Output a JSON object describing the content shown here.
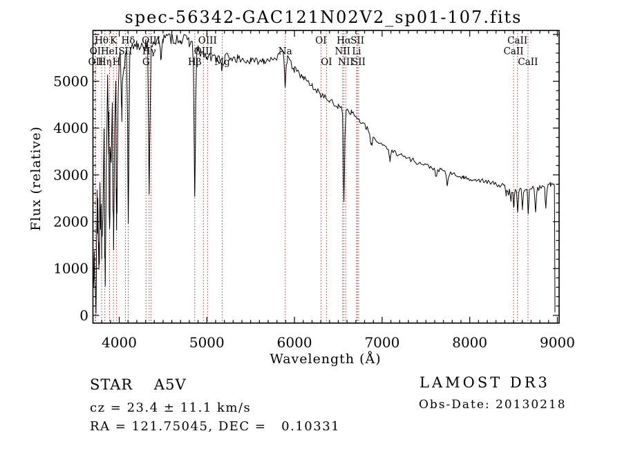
{
  "chart_data": {
    "type": "line",
    "title": "spec-56342-GAC121N02V2_sp01-107.fits",
    "xlabel": "Wavelength (Å)",
    "ylabel": "Flux (relative)",
    "xlim": [
      3700,
      9020
    ],
    "ylim": [
      -165,
      6085
    ],
    "x_major_ticks": [
      4000,
      5000,
      6000,
      7000,
      8000,
      9000
    ],
    "x_minor_step": 100,
    "y_major_ticks": [
      0,
      1000,
      2000,
      3000,
      4000,
      5000,
      6000
    ],
    "y_labeled_ticks": [
      0,
      1000,
      2000,
      3000,
      4000,
      5000
    ],
    "y_minor_step": 200,
    "grid": false,
    "line_color": "#000000",
    "marker_color": "#993333",
    "spectral_lines": [
      {
        "label": "Hθ",
        "wavelength": 3799,
        "row": 1
      },
      {
        "label": "K",
        "wavelength": 3934,
        "row": 1
      },
      {
        "label": "Hδ",
        "wavelength": 4102,
        "row": 1
      },
      {
        "label": "OIII",
        "wavelength": 4364,
        "row": 1
      },
      {
        "label": "OIII",
        "wavelength": 5008,
        "row": 1
      },
      {
        "label": "OI",
        "wavelength": 6302,
        "row": 1
      },
      {
        "label": "Hα",
        "wavelength": 6564,
        "row": 1
      },
      {
        "label": "SII",
        "wavelength": 6718,
        "row": 1
      },
      {
        "label": "CaII",
        "wavelength": 8544,
        "row": 1
      },
      {
        "label": "OI",
        "wavelength": 3727,
        "row": 2
      },
      {
        "label": "HeI",
        "wavelength": 3889,
        "row": 2
      },
      {
        "label": "SII",
        "wavelength": 4070,
        "row": 2
      },
      {
        "label": "Hγ",
        "wavelength": 4341,
        "row": 2
      },
      {
        "label": "OIII",
        "wavelength": 4960,
        "row": 2
      },
      {
        "label": "Na",
        "wavelength": 5894,
        "row": 2
      },
      {
        "label": "NII",
        "wavelength": 6549,
        "row": 2
      },
      {
        "label": "Li",
        "wavelength": 6709,
        "row": 2
      },
      {
        "label": "CaII",
        "wavelength": 8500,
        "row": 2
      },
      {
        "label": "OII",
        "wavelength": 3731,
        "row": 3
      },
      {
        "label": "Hη",
        "wavelength": 3836,
        "row": 3
      },
      {
        "label": "H",
        "wavelength": 3969,
        "row": 3
      },
      {
        "label": "G",
        "wavelength": 4306,
        "row": 3
      },
      {
        "label": "Hβ",
        "wavelength": 4862,
        "row": 3
      },
      {
        "label": "Mg",
        "wavelength": 5176,
        "row": 3
      },
      {
        "label": "OI",
        "wavelength": 6365,
        "row": 3
      },
      {
        "label": "NII",
        "wavelength": 6585,
        "row": 3
      },
      {
        "label": "SII",
        "wavelength": 6733,
        "row": 3
      },
      {
        "label": "CaII",
        "wavelength": 8664,
        "row": 3
      }
    ],
    "continuum": [
      [
        3705,
        300
      ],
      [
        3715,
        1700
      ],
      [
        3740,
        2300
      ],
      [
        3780,
        2800
      ],
      [
        3830,
        3500
      ],
      [
        3880,
        4200
      ],
      [
        3930,
        4700
      ],
      [
        3970,
        4900
      ],
      [
        4010,
        5250
      ],
      [
        4060,
        5450
      ],
      [
        4120,
        5600
      ],
      [
        4200,
        5750
      ],
      [
        4300,
        5800
      ],
      [
        4400,
        5850
      ],
      [
        4500,
        5900
      ],
      [
        4600,
        5920
      ],
      [
        4700,
        5900
      ],
      [
        4800,
        5850
      ],
      [
        4900,
        5650
      ],
      [
        5000,
        5500
      ],
      [
        5100,
        5500
      ],
      [
        5200,
        5520
      ],
      [
        5350,
        5480
      ],
      [
        5500,
        5420
      ],
      [
        5650,
        5450
      ],
      [
        5800,
        5520
      ],
      [
        5870,
        5580
      ],
      [
        5920,
        5480
      ],
      [
        6000,
        5250
      ],
      [
        6100,
        5080
      ],
      [
        6200,
        4900
      ],
      [
        6300,
        4720
      ],
      [
        6400,
        4580
      ],
      [
        6500,
        4460
      ],
      [
        6650,
        4340
      ],
      [
        6800,
        4050
      ],
      [
        6930,
        3740
      ],
      [
        7180,
        3450
      ],
      [
        7440,
        3240
      ],
      [
        7680,
        3090
      ],
      [
        7930,
        2940
      ],
      [
        8150,
        2870
      ],
      [
        8390,
        2760
      ],
      [
        8600,
        2720
      ],
      [
        8800,
        2720
      ],
      [
        8920,
        2800
      ],
      [
        8966,
        2780
      ],
      [
        8970,
        1400
      ],
      [
        8973,
        50
      ]
    ],
    "noise_envelope": [
      [
        3705,
        1200
      ],
      [
        3760,
        1300
      ],
      [
        3850,
        1400
      ],
      [
        3920,
        1200
      ],
      [
        3960,
        900
      ],
      [
        4000,
        420
      ],
      [
        4050,
        260
      ],
      [
        4150,
        170
      ],
      [
        4300,
        150
      ],
      [
        4500,
        130
      ],
      [
        4800,
        120
      ],
      [
        5000,
        110
      ],
      [
        5300,
        95
      ],
      [
        5600,
        85
      ],
      [
        5900,
        80
      ],
      [
        6200,
        70
      ],
      [
        6563,
        60
      ],
      [
        7000,
        55
      ],
      [
        7500,
        50
      ],
      [
        8000,
        45
      ],
      [
        8400,
        55
      ],
      [
        8700,
        60
      ],
      [
        8950,
        50
      ],
      [
        8973,
        20
      ]
    ],
    "absorptions": [
      [
        3735,
        900,
        4
      ],
      [
        3752,
        1100,
        4
      ],
      [
        3772,
        1300,
        4.5
      ],
      [
        3800,
        1700,
        5
      ],
      [
        3838,
        1900,
        5
      ],
      [
        3890,
        2100,
        5.5
      ],
      [
        3935,
        2500,
        6
      ],
      [
        3971,
        2600,
        6
      ],
      [
        4030,
        900,
        5
      ],
      [
        4103,
        3550,
        6.5
      ],
      [
        4342,
        3350,
        7
      ],
      [
        4474,
        450,
        6
      ],
      [
        4862,
        3250,
        7.5
      ],
      [
        5178,
        280,
        12
      ],
      [
        5894,
        600,
        6.5
      ],
      [
        6564,
        1950,
        7
      ],
      [
        6875,
        280,
        9
      ],
      [
        7090,
        260,
        8
      ],
      [
        7615,
        200,
        9
      ],
      [
        7745,
        280,
        8
      ],
      [
        8415,
        180,
        6
      ],
      [
        8440,
        200,
        6
      ],
      [
        8470,
        280,
        6
      ],
      [
        8502,
        430,
        6.5
      ],
      [
        8548,
        480,
        6.5
      ],
      [
        8600,
        430,
        6.5
      ],
      [
        8667,
        500,
        7
      ],
      [
        8752,
        480,
        7
      ],
      [
        8868,
        430,
        7
      ]
    ],
    "lambda_start": 3706,
    "lambda_end": 8973,
    "noise_seed": 13,
    "flux_floor": 40,
    "flux_cap": 6050
  },
  "footer": {
    "classification": "STAR    A5V",
    "cz": "cz = 23.4 ± 11.1 km/s",
    "ra_dec": "RA = 121.75045, DEC =   0.10331",
    "survey": "LAMOST DR3",
    "obs_date": "Obs-Date: 20130218"
  }
}
